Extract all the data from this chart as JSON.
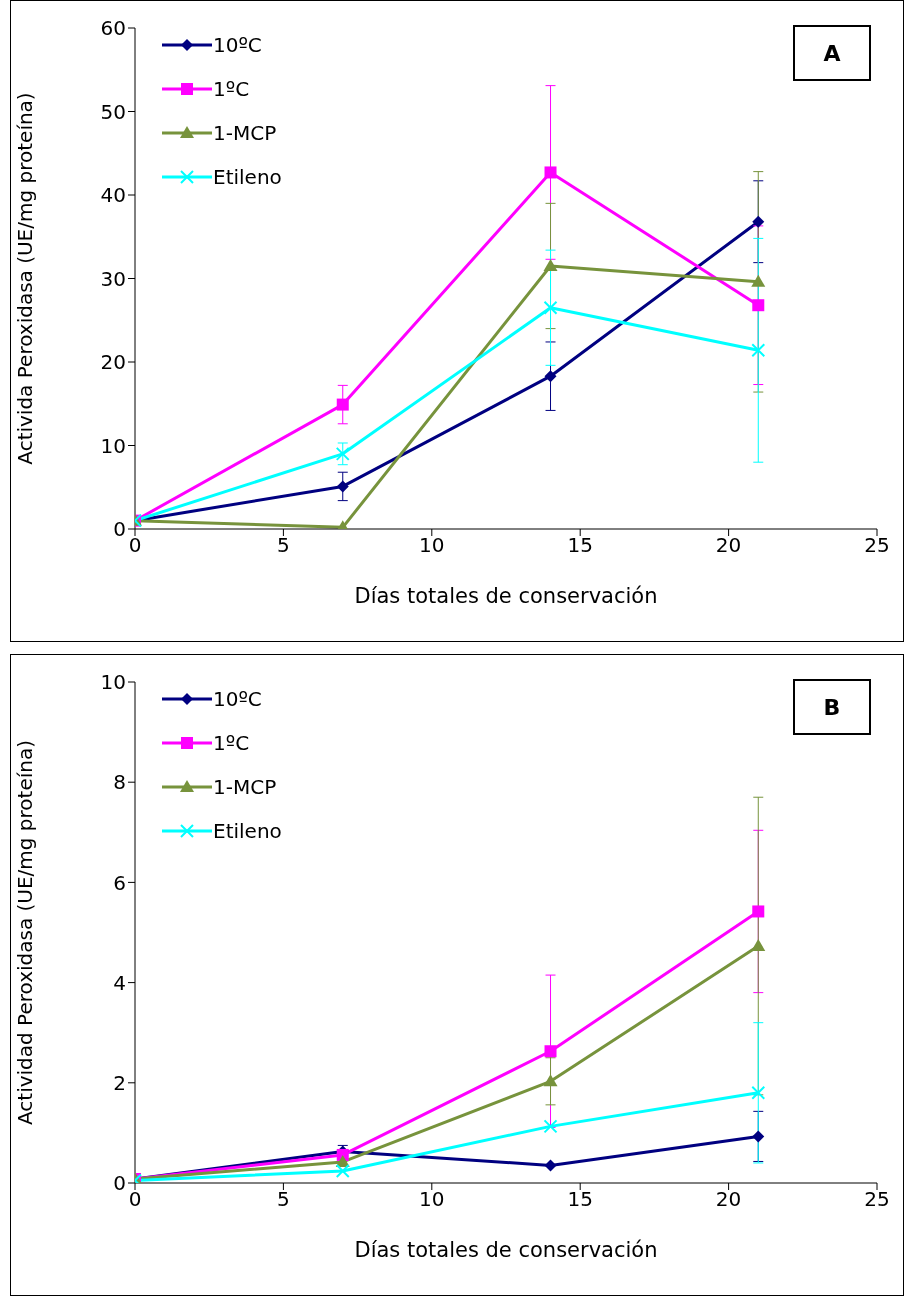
{
  "chart_data": [
    {
      "type": "line",
      "annotations": [
        "A"
      ],
      "xlabel": "Días totales de conservación",
      "ylabel": "Activida Peroxidasa (UE/mg proteína)",
      "x": [
        0,
        7,
        14,
        21
      ],
      "xlim": [
        0,
        25
      ],
      "xticks": [
        0,
        5,
        10,
        15,
        20,
        25
      ],
      "ylim": [
        0,
        60
      ],
      "yticks": [
        0,
        10,
        20,
        30,
        40,
        50,
        60
      ],
      "grid": false,
      "legend": "top left",
      "series": [
        {
          "name": "10ºC",
          "color": "#000080",
          "marker": "diamond",
          "values": [
            1.0,
            5.1,
            18.3,
            36.8
          ],
          "errors": [
            null,
            1.7,
            4.1,
            4.9
          ]
        },
        {
          "name": "1ºC",
          "color": "#ff00ff",
          "marker": "square",
          "values": [
            1.0,
            14.9,
            42.7,
            26.8
          ],
          "errors": [
            null,
            2.3,
            10.4,
            9.5
          ]
        },
        {
          "name": "1-MCP",
          "color": "#77933c",
          "marker": "triangle",
          "values": [
            1.0,
            0.2,
            31.5,
            29.6
          ],
          "errors": [
            null,
            null,
            7.5,
            13.2
          ]
        },
        {
          "name": "Etileno",
          "color": "#00ffff",
          "marker": "cross",
          "values": [
            1.0,
            9.0,
            26.5,
            21.4
          ],
          "errors": [
            null,
            1.3,
            6.9,
            13.4
          ]
        }
      ]
    },
    {
      "type": "line",
      "annotations": [
        "B"
      ],
      "xlabel": "Días totales de conservación",
      "ylabel": "Actividad Peroxidasa (UE/mg proteína)",
      "x": [
        0,
        7,
        14,
        21
      ],
      "xlim": [
        0,
        25
      ],
      "xticks": [
        0,
        5,
        10,
        15,
        20,
        25
      ],
      "ylim": [
        0,
        10
      ],
      "yticks": [
        0,
        2,
        4,
        6,
        8,
        10
      ],
      "grid": false,
      "legend": "top left",
      "series": [
        {
          "name": "10ºC",
          "color": "#000080",
          "marker": "diamond",
          "values": [
            0.08,
            0.63,
            0.35,
            0.93
          ],
          "errors": [
            null,
            0.12,
            null,
            0.5
          ]
        },
        {
          "name": "1ºC",
          "color": "#ff00ff",
          "marker": "square",
          "values": [
            0.08,
            0.56,
            2.63,
            5.42
          ],
          "errors": [
            null,
            null,
            1.52,
            1.62
          ]
        },
        {
          "name": "1-MCP",
          "color": "#77933c",
          "marker": "triangle",
          "values": [
            0.08,
            0.42,
            2.03,
            4.73
          ],
          "errors": [
            null,
            null,
            0.47,
            2.97
          ]
        },
        {
          "name": "Etileno",
          "color": "#00ffff",
          "marker": "cross",
          "values": [
            0.05,
            0.24,
            1.13,
            1.8
          ],
          "errors": [
            null,
            null,
            null,
            1.4
          ]
        }
      ]
    }
  ]
}
